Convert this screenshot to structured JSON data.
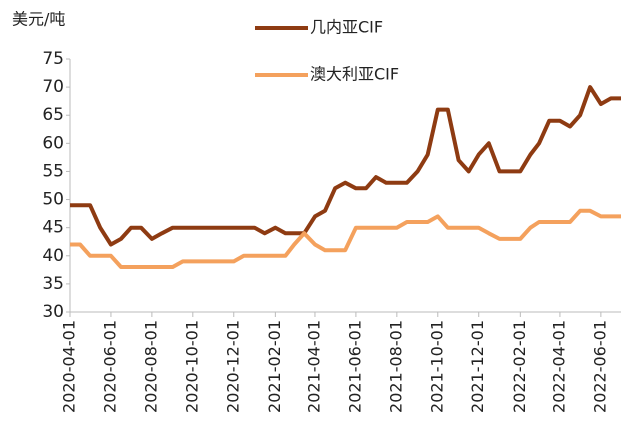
{
  "chart_data": {
    "type": "line",
    "y_axis_label": "美元/吨",
    "x": [
      "2020-04-01",
      "2020-04-16",
      "2020-05-01",
      "2020-05-16",
      "2020-06-01",
      "2020-06-16",
      "2020-07-01",
      "2020-07-16",
      "2020-08-01",
      "2020-08-16",
      "2020-09-01",
      "2020-09-16",
      "2020-10-01",
      "2020-10-16",
      "2020-11-01",
      "2020-11-16",
      "2020-12-01",
      "2020-12-16",
      "2021-01-01",
      "2021-01-16",
      "2021-02-01",
      "2021-02-16",
      "2021-03-01",
      "2021-03-16",
      "2021-04-01",
      "2021-04-16",
      "2021-05-01",
      "2021-05-16",
      "2021-06-01",
      "2021-06-16",
      "2021-07-01",
      "2021-07-16",
      "2021-08-01",
      "2021-08-16",
      "2021-09-01",
      "2021-09-16",
      "2021-10-01",
      "2021-10-16",
      "2021-11-01",
      "2021-11-16",
      "2021-12-01",
      "2021-12-16",
      "2022-01-01",
      "2022-01-16",
      "2022-02-01",
      "2022-02-16",
      "2022-03-01",
      "2022-03-16",
      "2022-04-01",
      "2022-04-16",
      "2022-05-01",
      "2022-05-16",
      "2022-06-01",
      "2022-06-16",
      "2022-07-01"
    ],
    "series": [
      {
        "name": "几内亚CIF",
        "color": "#8e3b12",
        "values": [
          49,
          49,
          49,
          45,
          42,
          43,
          45,
          45,
          43,
          44,
          45,
          45,
          45,
          45,
          45,
          45,
          45,
          45,
          45,
          44,
          45,
          44,
          44,
          44,
          47,
          48,
          52,
          53,
          52,
          52,
          54,
          53,
          53,
          53,
          55,
          58,
          66,
          66,
          57,
          55,
          58,
          60,
          55,
          55,
          55,
          58,
          60,
          64,
          64,
          63,
          65,
          70,
          67,
          68,
          68
        ]
      },
      {
        "name": "澳大利亚CIF",
        "color": "#f4a15d",
        "values": [
          42,
          42,
          40,
          40,
          40,
          38,
          38,
          38,
          38,
          38,
          38,
          39,
          39,
          39,
          39,
          39,
          39,
          40,
          40,
          40,
          40,
          40,
          42,
          44,
          42,
          41,
          41,
          41,
          45,
          45,
          45,
          45,
          45,
          46,
          46,
          46,
          47,
          45,
          45,
          45,
          45,
          44,
          43,
          43,
          43,
          45,
          46,
          46,
          46,
          46,
          48,
          48,
          47,
          47,
          47
        ]
      }
    ],
    "xlim": [
      "2020-04-01",
      "2022-07-01"
    ],
    "xticks": [
      "2020-04-01",
      "2020-06-01",
      "2020-08-01",
      "2020-10-01",
      "2020-12-01",
      "2021-02-01",
      "2021-04-01",
      "2021-06-01",
      "2021-08-01",
      "2021-10-01",
      "2021-12-01",
      "2022-02-01",
      "2022-04-01",
      "2022-06-01"
    ],
    "ylim": [
      30,
      75
    ],
    "yticks": [
      30,
      35,
      40,
      45,
      50,
      55,
      60,
      65,
      70,
      75
    ]
  }
}
